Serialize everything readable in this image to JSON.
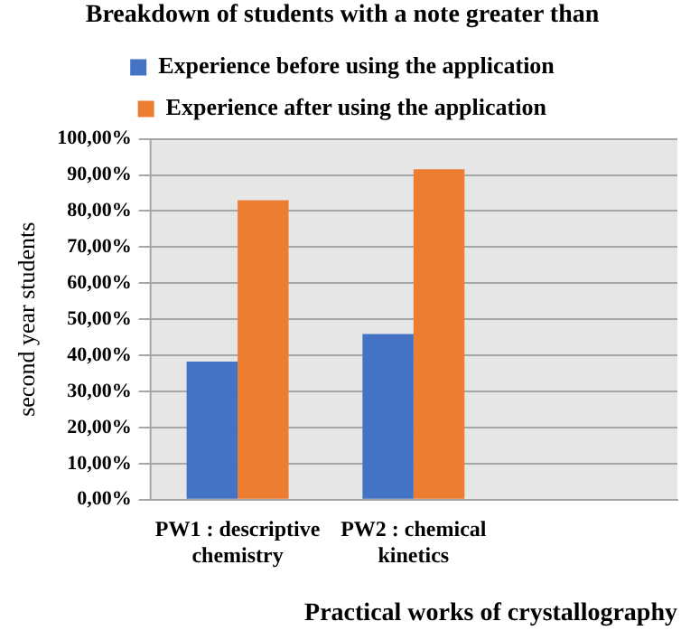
{
  "chart_data": {
    "type": "bar",
    "title": "Breakdown of students with a note greater than",
    "xlabel": "Practical works of crystallography",
    "ylabel": "second year students",
    "categories": [
      "PW1 : descriptive chemistry",
      "PW2 : chemical kinetics",
      null
    ],
    "series": [
      {
        "name": "Experience before using the application",
        "color": "#4472c4",
        "values": [
          38.3,
          45.9,
          null
        ]
      },
      {
        "name": "Experience after using the application",
        "color": "#ed7d31",
        "values": [
          83.0,
          91.6,
          null
        ]
      }
    ],
    "ylim": [
      0,
      100
    ],
    "yticks": [
      {
        "value": 0,
        "label": "0,00%"
      },
      {
        "value": 10,
        "label": "10,00%"
      },
      {
        "value": 20,
        "label": "20,00%"
      },
      {
        "value": 30,
        "label": "30,00%"
      },
      {
        "value": 40,
        "label": "40,00%"
      },
      {
        "value": 50,
        "label": "50,00%"
      },
      {
        "value": 60,
        "label": "60,00%"
      },
      {
        "value": 70,
        "label": "70,00%"
      },
      {
        "value": 80,
        "label": "80,00%"
      },
      {
        "value": 90,
        "label": "90,00%"
      },
      {
        "value": 100,
        "label": "100,00%"
      }
    ],
    "grid": "y",
    "legend": "top"
  }
}
